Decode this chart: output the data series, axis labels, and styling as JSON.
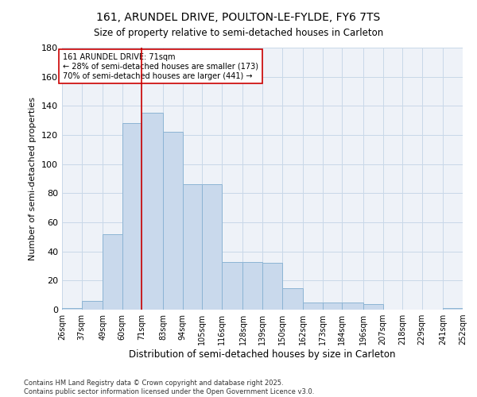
{
  "title1": "161, ARUNDEL DRIVE, POULTON-LE-FYLDE, FY6 7TS",
  "title2": "Size of property relative to semi-detached houses in Carleton",
  "xlabel": "Distribution of semi-detached houses by size in Carleton",
  "ylabel": "Number of semi-detached properties",
  "bins": [
    26,
    37,
    49,
    60,
    71,
    83,
    94,
    105,
    116,
    128,
    139,
    150,
    162,
    173,
    184,
    196,
    207,
    218,
    229,
    241,
    252
  ],
  "counts": [
    1,
    6,
    52,
    128,
    135,
    122,
    86,
    86,
    33,
    33,
    32,
    15,
    5,
    5,
    5,
    4,
    0,
    0,
    0,
    1,
    0
  ],
  "bar_facecolor": "#c9d9ec",
  "bar_edgecolor": "#8cb4d4",
  "property_value": 71,
  "vline_color": "#cc0000",
  "annotation_text": "161 ARUNDEL DRIVE: 71sqm\n← 28% of semi-detached houses are smaller (173)\n70% of semi-detached houses are larger (441) →",
  "annotation_box_edgecolor": "#cc0000",
  "grid_color": "#c8d8e8",
  "background_color": "#eef2f8",
  "footer_text": "Contains HM Land Registry data © Crown copyright and database right 2025.\nContains public sector information licensed under the Open Government Licence v3.0.",
  "ylim": [
    0,
    180
  ],
  "yticks": [
    0,
    20,
    40,
    60,
    80,
    100,
    120,
    140,
    160,
    180
  ]
}
